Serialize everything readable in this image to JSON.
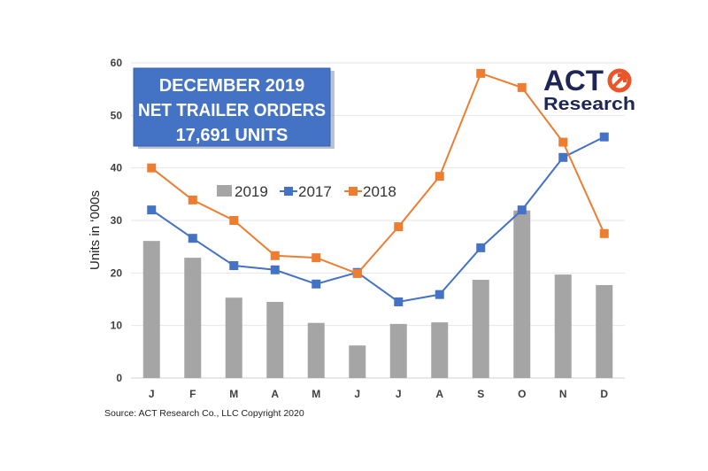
{
  "chart_data": {
    "type": "bar",
    "categories": [
      "J",
      "F",
      "M",
      "A",
      "M",
      "J",
      "J",
      "A",
      "S",
      "O",
      "N",
      "D"
    ],
    "series": [
      {
        "name": "2019",
        "type": "bar",
        "color": "#a5a5a5",
        "values": [
          26.1,
          22.9,
          15.3,
          14.5,
          10.5,
          6.2,
          10.3,
          10.6,
          18.7,
          31.9,
          19.7,
          17.7
        ]
      },
      {
        "name": "2017",
        "type": "line",
        "color": "#4472c4",
        "values": [
          32.0,
          26.6,
          21.4,
          20.6,
          17.9,
          20.1,
          14.5,
          15.9,
          24.8,
          32.0,
          42.0,
          45.9
        ]
      },
      {
        "name": "2018",
        "type": "line",
        "color": "#ed7d31",
        "values": [
          40.0,
          33.9,
          30.0,
          23.3,
          22.9,
          19.9,
          28.8,
          38.4,
          58.0,
          55.3,
          44.9,
          27.5
        ]
      }
    ],
    "ylabel": "Units in ‘000s",
    "ylim": [
      0,
      60
    ],
    "yticks": [
      "0",
      "10",
      "20",
      "30",
      "40",
      "50",
      "60"
    ],
    "grid": true,
    "legend": "top-center",
    "banner": {
      "line1": "DECEMBER 2019",
      "line2": "NET TRAILER ORDERS",
      "line3": "17,691 UNITS",
      "color": "#4472c4"
    },
    "source": "Source: ACT Research Co., LLC  Copyright 2020"
  },
  "logo": {
    "line1": "ACT",
    "line2": "Research",
    "color": "#1e2557",
    "accent": "#e8562a"
  }
}
